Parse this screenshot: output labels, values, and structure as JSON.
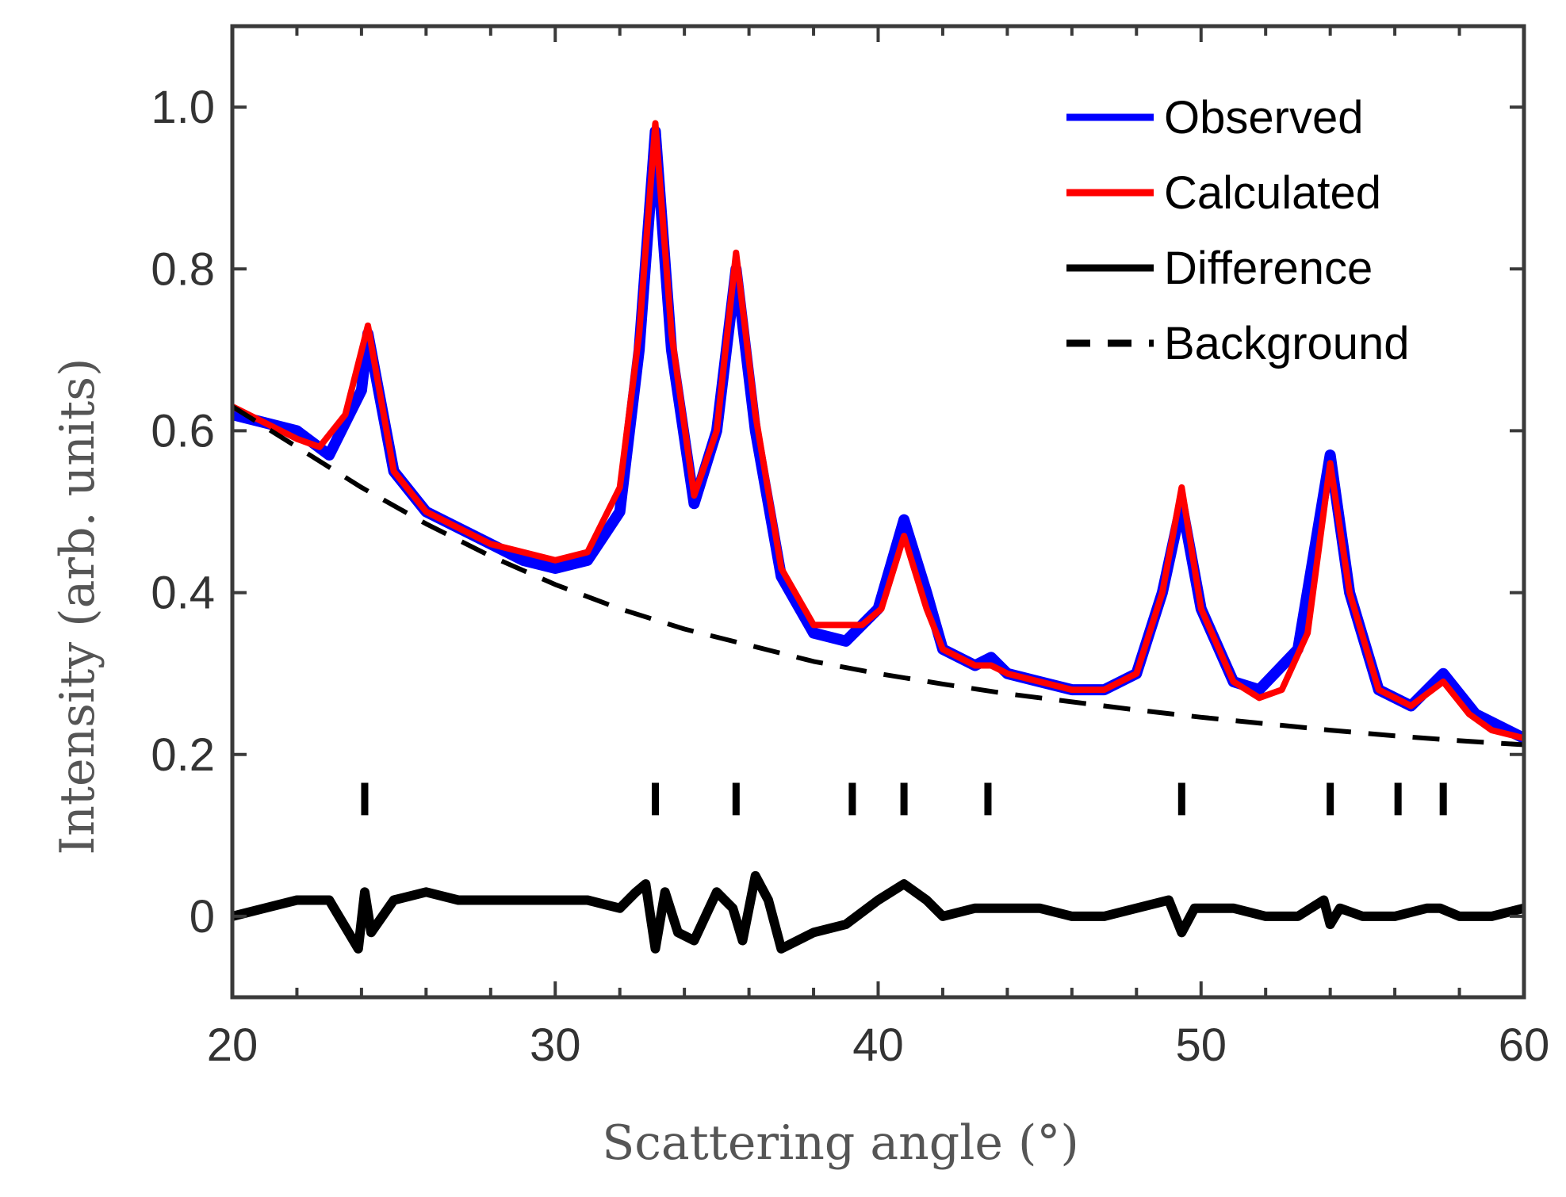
{
  "chart_data": {
    "type": "line",
    "xlabel": "Scattering angle (°)",
    "ylabel": "Intensity (arb. units)",
    "xlim": [
      20,
      60
    ],
    "ylim": [
      -0.1,
      1.1
    ],
    "x_ticks": [
      20,
      30,
      40,
      50,
      60
    ],
    "x_tick_labels": [
      "20",
      "30",
      "40",
      "50",
      "60"
    ],
    "y_ticks": [
      0,
      0.2,
      0.4,
      0.6,
      0.8,
      1.0
    ],
    "y_tick_labels": [
      "0",
      "0.2",
      "0.4",
      "0.6",
      "0.8",
      "1.0"
    ],
    "grid": false,
    "legend_position": "top-right",
    "series": [
      {
        "name": "Observed",
        "color": "#0000ff",
        "style": "solid",
        "x": [
          20,
          21,
          22,
          23,
          24,
          24.2,
          25,
          26,
          27,
          28,
          29,
          30,
          31,
          32,
          32.6,
          33.1,
          33.6,
          34.3,
          35,
          35.6,
          36.2,
          37,
          38,
          39,
          40,
          40.8,
          41.5,
          42,
          43,
          43.5,
          44,
          45,
          46,
          47,
          48,
          48.8,
          49.4,
          50,
          51,
          51.8,
          53,
          53.5,
          54.0,
          54.6,
          55.5,
          56.5,
          57.5,
          58.5,
          60
        ],
        "y": [
          0.62,
          0.61,
          0.6,
          0.57,
          0.65,
          0.72,
          0.55,
          0.5,
          0.48,
          0.46,
          0.44,
          0.43,
          0.44,
          0.5,
          0.7,
          0.97,
          0.7,
          0.51,
          0.6,
          0.8,
          0.6,
          0.42,
          0.35,
          0.34,
          0.38,
          0.49,
          0.4,
          0.33,
          0.31,
          0.32,
          0.3,
          0.29,
          0.28,
          0.28,
          0.3,
          0.4,
          0.51,
          0.38,
          0.29,
          0.28,
          0.33,
          0.45,
          0.57,
          0.4,
          0.28,
          0.26,
          0.3,
          0.25,
          0.22
        ]
      },
      {
        "name": "Calculated",
        "color": "#ff0000",
        "style": "solid",
        "x": [
          20,
          21,
          22,
          22.7,
          23.5,
          24.2,
          25,
          26,
          27,
          28,
          29,
          30,
          31,
          32,
          32.6,
          33.1,
          33.6,
          34.3,
          35,
          35.6,
          36.2,
          37,
          38,
          39,
          39.5,
          40.1,
          40.8,
          41.5,
          42,
          43,
          43.5,
          44,
          45,
          46,
          47,
          48,
          48.8,
          49.4,
          50,
          51,
          51.8,
          52.5,
          53.3,
          54.0,
          54.6,
          55.5,
          56.5,
          57.5,
          58.3,
          59,
          60
        ],
        "y": [
          0.63,
          0.61,
          0.59,
          0.58,
          0.62,
          0.73,
          0.55,
          0.5,
          0.48,
          0.46,
          0.45,
          0.44,
          0.45,
          0.53,
          0.72,
          0.98,
          0.72,
          0.52,
          0.6,
          0.82,
          0.62,
          0.43,
          0.36,
          0.36,
          0.36,
          0.38,
          0.47,
          0.38,
          0.33,
          0.31,
          0.31,
          0.3,
          0.29,
          0.28,
          0.28,
          0.3,
          0.4,
          0.53,
          0.38,
          0.29,
          0.27,
          0.28,
          0.35,
          0.56,
          0.4,
          0.28,
          0.26,
          0.29,
          0.25,
          0.23,
          0.22
        ]
      },
      {
        "name": "Difference",
        "color": "#000000",
        "style": "solid",
        "x": [
          20,
          21,
          22,
          23,
          23.9,
          24.1,
          24.3,
          25,
          26,
          27,
          28,
          29,
          30,
          31,
          32,
          32.5,
          32.8,
          33.1,
          33.4,
          33.8,
          34.3,
          35,
          35.5,
          35.8,
          36.2,
          36.6,
          37,
          38,
          39,
          40,
          40.8,
          41.5,
          42,
          43,
          44,
          45,
          46,
          47,
          48,
          49,
          49.4,
          49.8,
          51,
          52,
          53,
          53.8,
          54.0,
          54.3,
          55,
          56,
          57,
          57.4,
          58,
          59,
          60
        ],
        "y": [
          0,
          0.01,
          0.02,
          0.02,
          -0.04,
          0.03,
          -0.02,
          0.02,
          0.03,
          0.02,
          0.02,
          0.02,
          0.02,
          0.02,
          0.01,
          0.03,
          0.04,
          -0.04,
          0.03,
          -0.02,
          -0.03,
          0.03,
          0.01,
          -0.03,
          0.05,
          0.02,
          -0.04,
          -0.02,
          -0.01,
          0.02,
          0.04,
          0.02,
          0,
          0.01,
          0.01,
          0.01,
          0,
          0,
          0.01,
          0.02,
          -0.02,
          0.01,
          0.01,
          0,
          0,
          0.02,
          -0.01,
          0.01,
          0,
          0,
          0.01,
          0.01,
          0,
          0,
          0.01
        ]
      },
      {
        "name": "Background",
        "color": "#000000",
        "style": "dashed",
        "x": [
          20,
          22,
          24,
          26,
          28,
          30,
          32,
          34,
          36,
          38,
          40,
          42,
          44,
          46,
          48,
          50,
          52,
          54,
          56,
          58,
          60
        ],
        "y": [
          0.63,
          0.58,
          0.53,
          0.485,
          0.445,
          0.41,
          0.38,
          0.355,
          0.335,
          0.315,
          0.3,
          0.287,
          0.275,
          0.265,
          0.255,
          0.246,
          0.238,
          0.23,
          0.223,
          0.217,
          0.212
        ]
      }
    ],
    "reflection_markers": {
      "x": [
        24.1,
        33.1,
        35.6,
        39.2,
        40.8,
        43.4,
        49.4,
        54.0,
        56.1,
        57.5
      ],
      "y_range": [
        0.125,
        0.165
      ]
    }
  }
}
